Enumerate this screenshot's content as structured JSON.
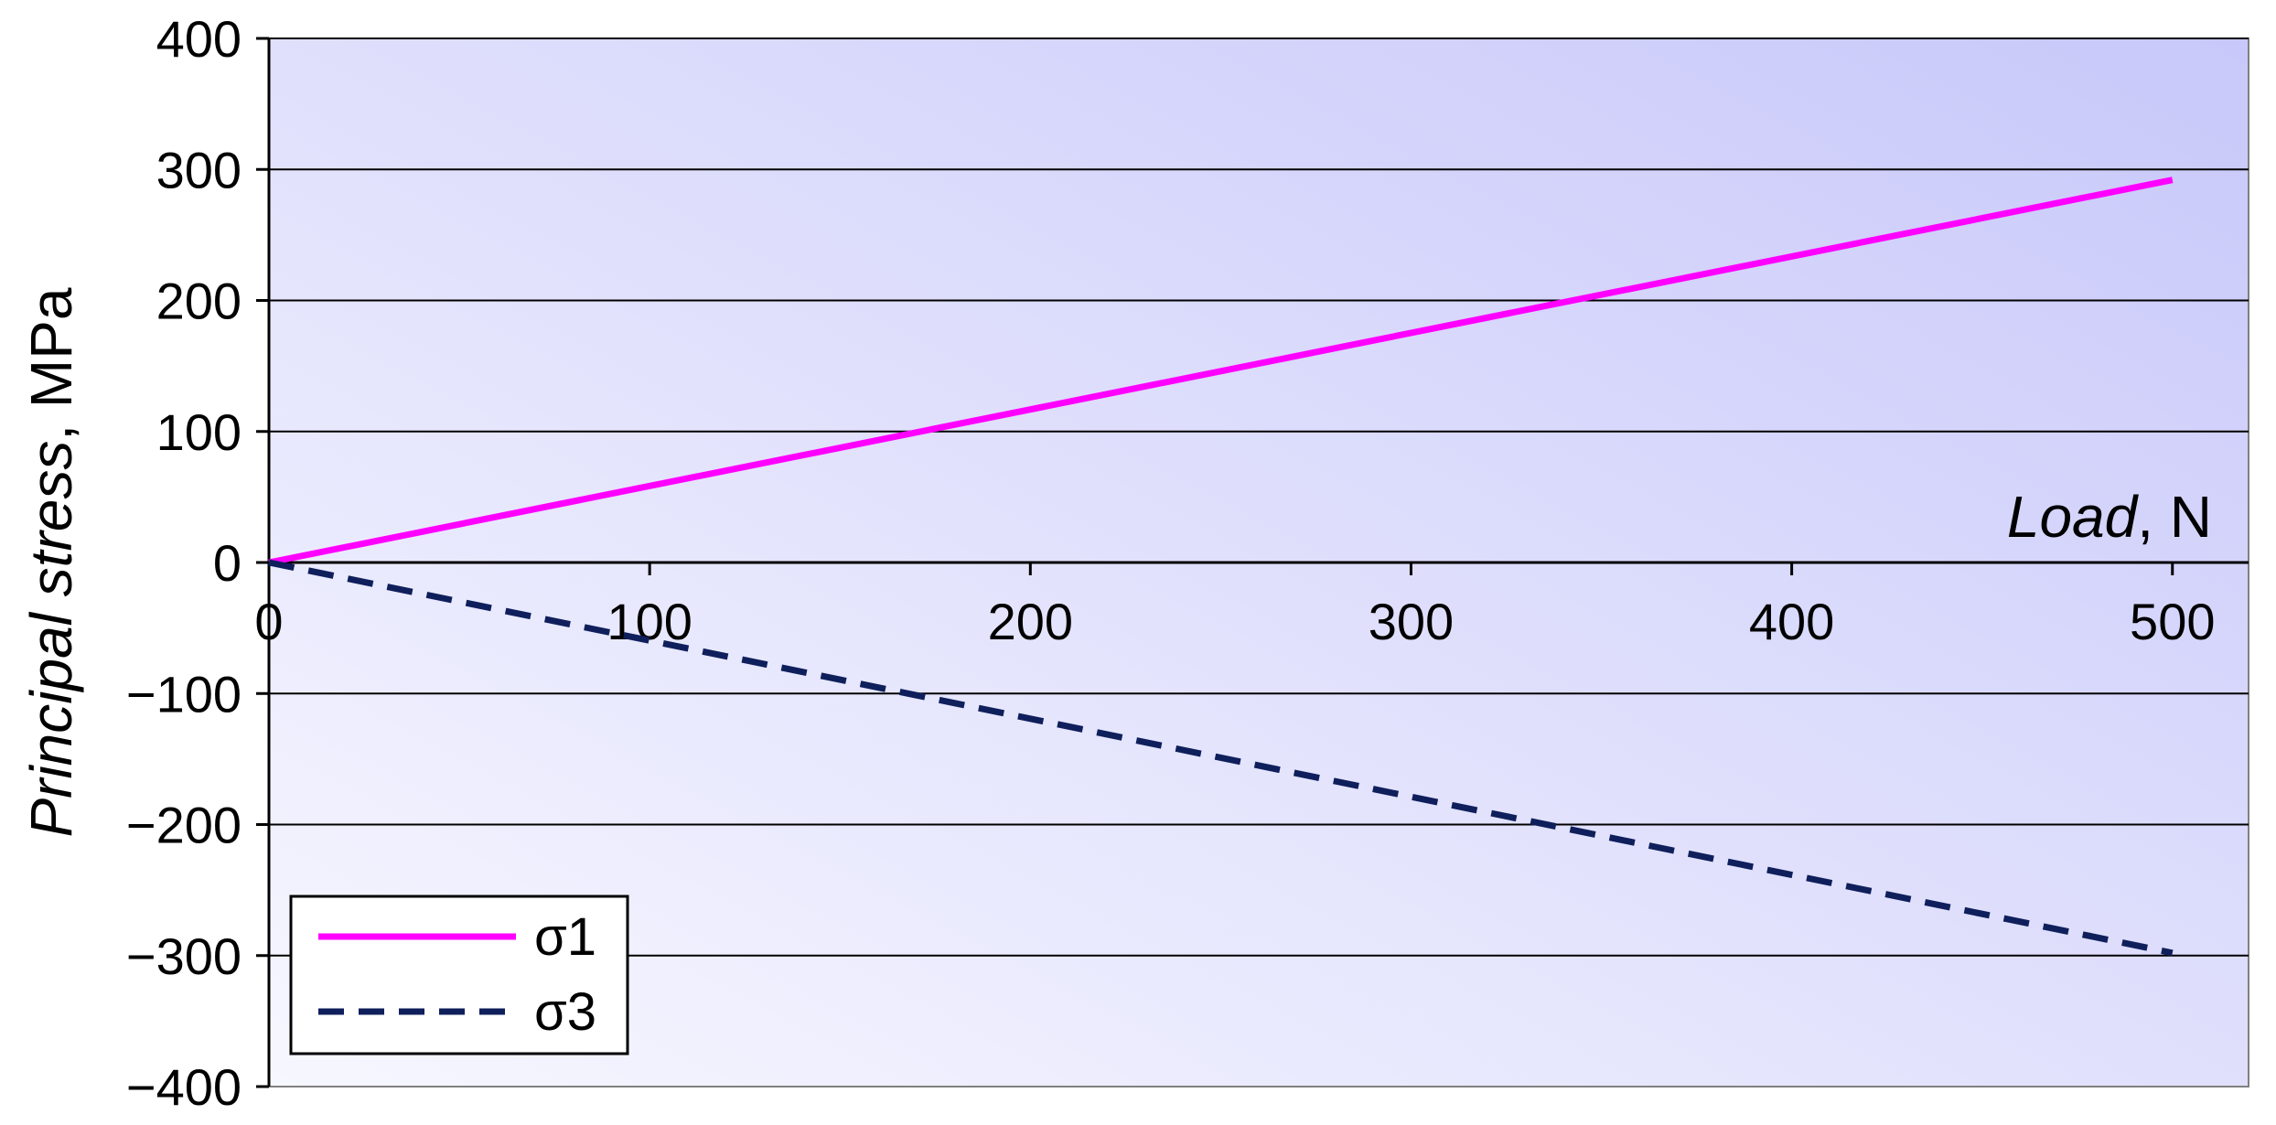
{
  "chart_data": {
    "type": "line",
    "x": [
      0,
      500
    ],
    "series": [
      {
        "name": "σ1",
        "values": [
          0,
          292
        ],
        "color": "#ff00ff",
        "dash": "solid"
      },
      {
        "name": "σ3",
        "values": [
          0,
          -298
        ],
        "color": "#0f1f5c",
        "dash": "dashed"
      }
    ],
    "xlabel_italic": "Load",
    "xlabel_unit": ", N",
    "ylabel_italic": "Principal stress",
    "ylabel_unit": ", MPa",
    "xlim": [
      0,
      520
    ],
    "ylim": [
      -400,
      400
    ],
    "xticks": [
      0,
      100,
      200,
      300,
      400,
      500
    ],
    "yticks": [
      -400,
      -300,
      -200,
      -100,
      0,
      100,
      200,
      300,
      400
    ],
    "xtick_labels": [
      "0",
      "100",
      "200",
      "300",
      "400",
      "500"
    ],
    "ytick_labels": [
      "−400",
      "−300",
      "−200",
      "−100",
      "0",
      "100",
      "200",
      "300",
      "400"
    ],
    "grid": true,
    "legend_position": "bottom-left",
    "plot_background": [
      "#f7f7ff",
      "#c8c8fa"
    ]
  }
}
